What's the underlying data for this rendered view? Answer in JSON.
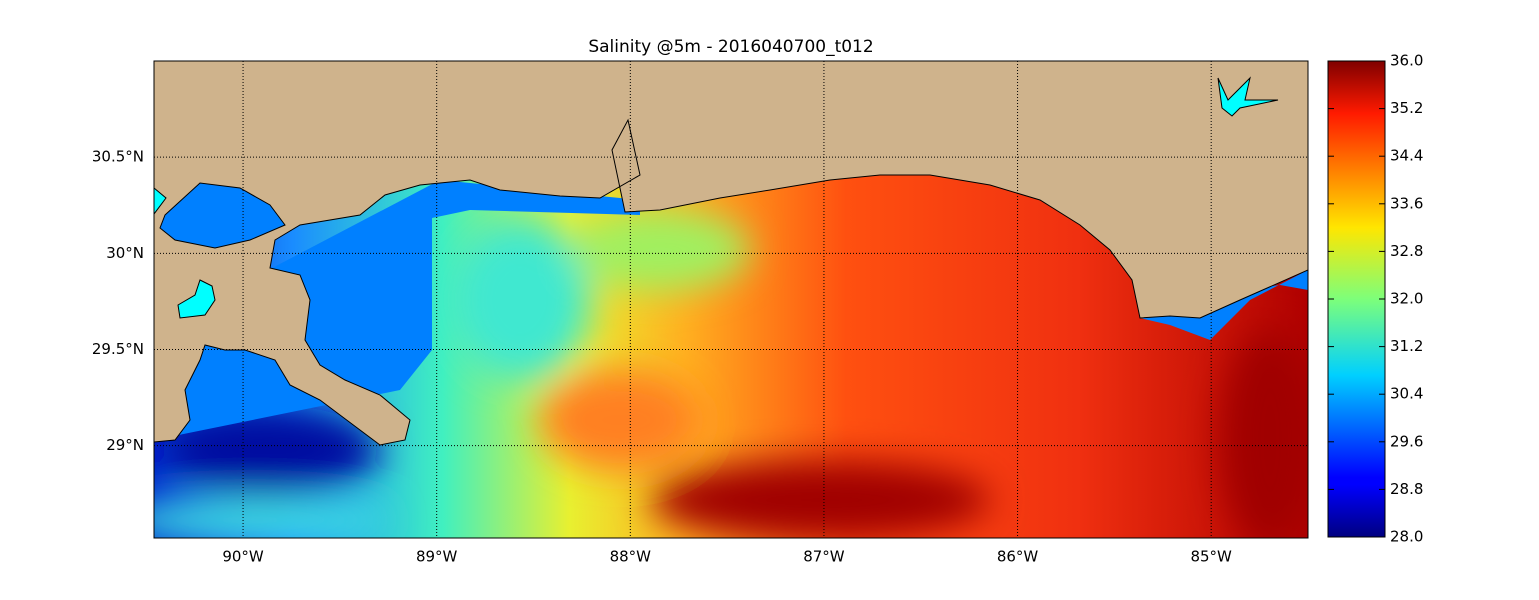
{
  "chart_data": {
    "type": "map",
    "title": "Salinity @5m - 2016040700_t012",
    "xlim": [
      -90.46,
      -84.5
    ],
    "ylim": [
      28.52,
      31.0
    ],
    "xticks": [
      {
        "value": -90,
        "label": "90°W"
      },
      {
        "value": -89,
        "label": "89°W"
      },
      {
        "value": -88,
        "label": "88°W"
      },
      {
        "value": -87,
        "label": "87°W"
      },
      {
        "value": -86,
        "label": "86°W"
      },
      {
        "value": -85,
        "label": "85°W"
      }
    ],
    "yticks": [
      {
        "value": 29,
        "label": "29°N"
      },
      {
        "value": 29.5,
        "label": "29.5°N"
      },
      {
        "value": 30,
        "label": "30°N"
      },
      {
        "value": 30.5,
        "label": "30.5°N"
      }
    ],
    "grid": true,
    "colorbar": {
      "lim": [
        28,
        36
      ],
      "ticks": [
        {
          "value": 28,
          "label": "28.0"
        },
        {
          "value": 28.8,
          "label": "28.8"
        },
        {
          "value": 29.6,
          "label": "29.6"
        },
        {
          "value": 30.4,
          "label": "30.4"
        },
        {
          "value": 31.2,
          "label": "31.2"
        },
        {
          "value": 32,
          "label": "32.0"
        },
        {
          "value": 32.8,
          "label": "32.8"
        },
        {
          "value": 33.6,
          "label": "33.6"
        },
        {
          "value": 34.4,
          "label": "34.4"
        },
        {
          "value": 35.2,
          "label": "35.2"
        },
        {
          "value": 36,
          "label": "36.0"
        }
      ]
    }
  }
}
